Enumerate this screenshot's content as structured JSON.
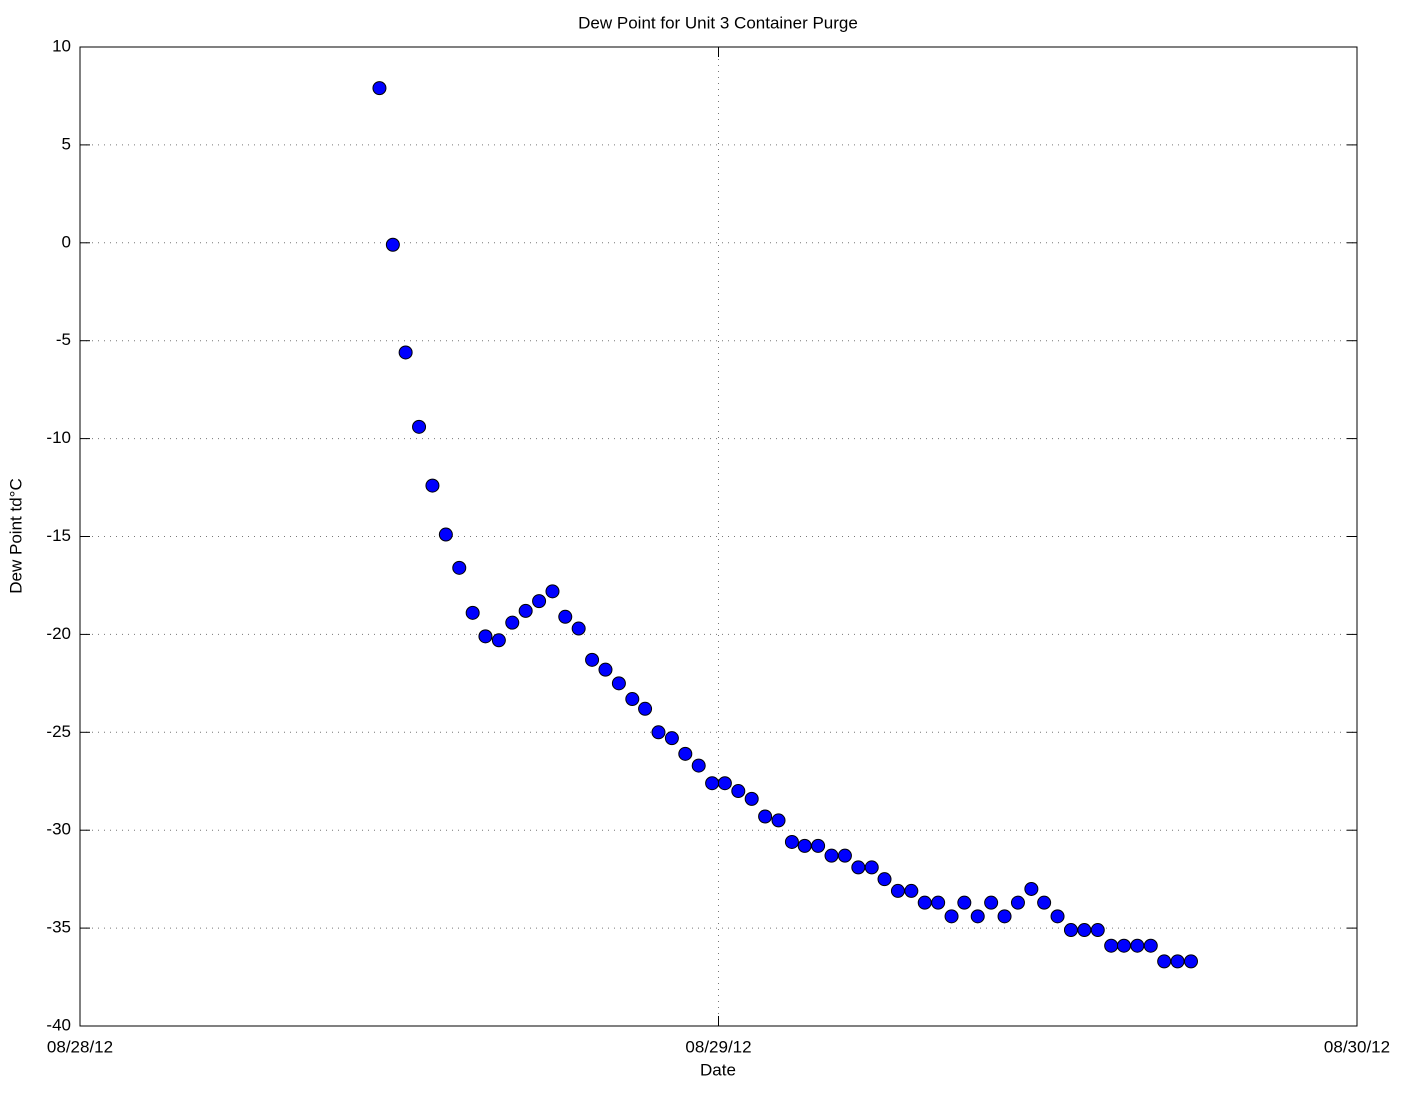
{
  "chart_data": {
    "type": "scatter",
    "title": "Dew Point for Unit 3 Container Purge",
    "x_label": "Date",
    "y_label": "Dew Point td°C",
    "series": [
      {
        "color": "#0000ff",
        "x": [
          0.469,
          0.49,
          0.51,
          0.531,
          0.552,
          0.573,
          0.594,
          0.615,
          0.635,
          0.656,
          0.677,
          0.698,
          0.719,
          0.74,
          0.76,
          0.781,
          0.802,
          0.823,
          0.844,
          0.865,
          0.885,
          0.906,
          0.927,
          0.948,
          0.969,
          0.99,
          1.01,
          1.031,
          1.052,
          1.073,
          1.094,
          1.115,
          1.135,
          1.156,
          1.177,
          1.198,
          1.219,
          1.24,
          1.26,
          1.281,
          1.302,
          1.323,
          1.344,
          1.365,
          1.385,
          1.406,
          1.427,
          1.448,
          1.469,
          1.49,
          1.51,
          1.531,
          1.552,
          1.573,
          1.594,
          1.615,
          1.635,
          1.656,
          1.677,
          1.698,
          1.719,
          1.74
        ],
        "values": [
          7.9,
          -0.1,
          -5.6,
          -9.4,
          -12.4,
          -14.9,
          -16.6,
          -18.9,
          -20.1,
          -20.3,
          -19.4,
          -18.8,
          -18.3,
          -17.8,
          -19.1,
          -19.7,
          -21.3,
          -21.8,
          -22.5,
          -23.3,
          -23.8,
          -25.0,
          -25.3,
          -26.1,
          -26.7,
          -27.6,
          -27.6,
          -28.0,
          -28.4,
          -29.3,
          -29.5,
          -30.6,
          -30.8,
          -30.8,
          -31.3,
          -31.3,
          -31.9,
          -31.9,
          -32.5,
          -33.1,
          -33.1,
          -33.7,
          -33.7,
          -34.4,
          -33.7,
          -34.4,
          -33.7,
          -34.4,
          -33.7,
          -33.0,
          -33.7,
          -34.4,
          -35.1,
          -35.1,
          -35.1,
          -35.9,
          -35.9,
          -35.9,
          -35.9,
          -36.7,
          -36.7,
          -36.7
        ]
      }
    ],
    "xlim": [
      0,
      2
    ],
    "xticks": [
      {
        "value": 0,
        "label": "08/28/12"
      },
      {
        "value": 1,
        "label": "08/29/12"
      },
      {
        "value": 2,
        "label": "08/30/12"
      }
    ],
    "ylim": [
      -40,
      10
    ],
    "yticks": [
      -40,
      -35,
      -30,
      -25,
      -20,
      -15,
      -10,
      -5,
      0,
      5,
      10
    ],
    "grid": true
  }
}
